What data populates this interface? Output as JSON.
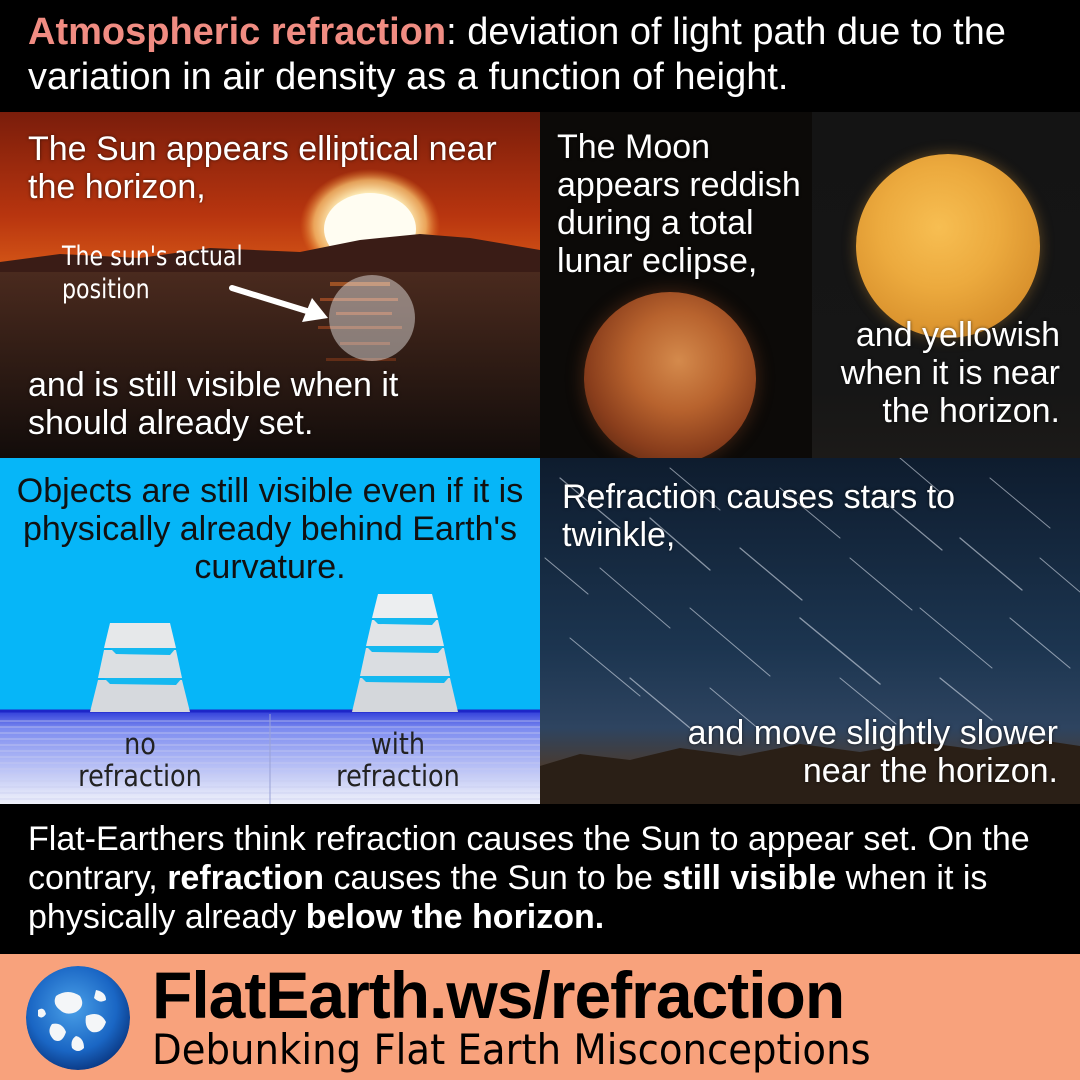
{
  "header": {
    "term": "Atmospheric refraction",
    "definition": ": deviation of light path due to the variation in air density as a function of height."
  },
  "sun_panel": {
    "text_top": "The Sun appears elliptical near the horizon,",
    "annotation": "The sun's actual position",
    "text_bottom": "and is still visible when it should already set."
  },
  "moon_panel": {
    "text": "The Moon appears reddish during a total lunar eclipse,"
  },
  "yellow_moon_panel": {
    "text": "and yellowish when it is near the horizon."
  },
  "ships_panel": {
    "text": "Objects are still visible even if it is physically already behind Earth's curvature.",
    "label_no_line1": "no",
    "label_no_line2": "refraction",
    "label_with_line1": "with",
    "label_with_line2": "refraction"
  },
  "stars_panel": {
    "text_top": "Refraction causes stars to twinkle,",
    "text_bottom_line1": "and move slightly slower",
    "text_bottom_line2": "near the horizon."
  },
  "conclusion": {
    "part1": "Flat-Earthers think refraction causes the Sun to appear set. On the contrary, ",
    "bold1": "refraction",
    "part2": " causes the Sun to be ",
    "bold2": "still visible",
    "part3": " when it is physically already ",
    "bold3": "below the horizon."
  },
  "footer": {
    "url": "FlatEarth.ws/refraction",
    "tagline": "Debunking Flat Earth Misconceptions"
  },
  "colors": {
    "header_term": "#f08c82",
    "footer_bg": "#f8a27c",
    "ships_sky": "#06b6f8"
  },
  "icons": {
    "footer_logo": "globe-icon",
    "sun_annotation": "arrow-right-icon"
  }
}
